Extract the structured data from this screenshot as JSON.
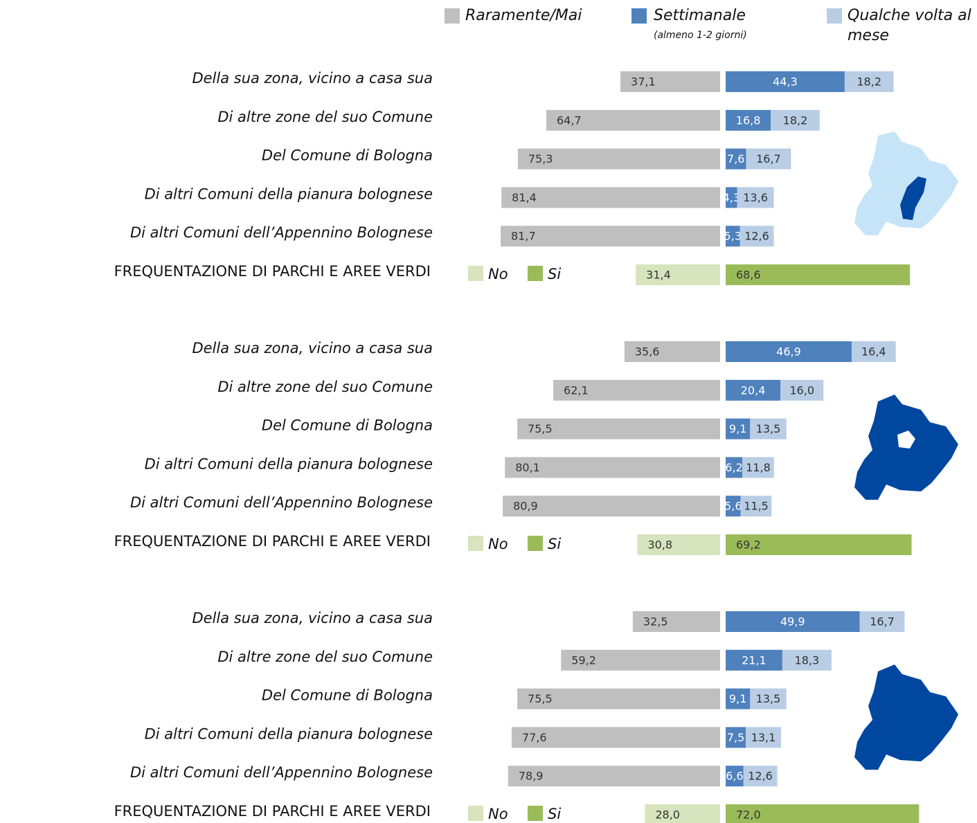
{
  "chart_data": [
    {
      "type": "bar",
      "orientation": "horizontal",
      "stacked": true,
      "categories": [
        "Della sua zona, vicino a casa sua",
        "Di altre zone del suo Comune",
        "Del Comune di Bologna",
        "Di altri Comuni della pianura bolognese",
        "Di altri Comuni dell’Appennino Bolognese"
      ],
      "series": [
        {
          "name": "Raramente/Mai",
          "color": "#bfbfbf",
          "values": [
            37.1,
            64.7,
            75.3,
            81.4,
            81.7
          ],
          "value_labels": [
            "37,1",
            "64,7",
            "75,3",
            "81,4",
            "81,7"
          ]
        },
        {
          "name": "Settimanale",
          "subtitle": "(almeno 1-2 giorni)",
          "color": "#4f81bd",
          "values": [
            44.3,
            16.8,
            7.6,
            4.3,
            5.3
          ],
          "value_labels": [
            "44,3",
            "16,8",
            "7,6",
            "4,3",
            "5,3"
          ]
        },
        {
          "name": "Qualche volta al mese",
          "color": "#b9cde5",
          "values": [
            18.2,
            18.2,
            16.7,
            13.6,
            12.6
          ],
          "value_labels": [
            "18,2",
            "18,2",
            "16,7",
            "13,6",
            "12,6"
          ]
        }
      ],
      "summary": {
        "label": "FREQUENTAZIONE DI PARCHI E AREE VERDI",
        "series": [
          {
            "name": "No",
            "color": "#d7e4bd",
            "value": 31.4,
            "value_label": "31,4"
          },
          {
            "name": "Si",
            "color": "#9bbb59",
            "value": 68.6,
            "value_label": "68,6"
          }
        ]
      }
    },
    {
      "type": "bar",
      "orientation": "horizontal",
      "stacked": true,
      "categories": [
        "Della sua zona, vicino a casa sua",
        "Di altre zone del suo Comune",
        "Del Comune di Bologna",
        "Di altri Comuni della pianura bolognese",
        "Di altri Comuni dell’Appennino Bolognese"
      ],
      "series": [
        {
          "name": "Raramente/Mai",
          "color": "#bfbfbf",
          "values": [
            35.6,
            62.1,
            75.5,
            80.1,
            80.9
          ],
          "value_labels": [
            "35,6",
            "62,1",
            "75,5",
            "80,1",
            "80,9"
          ]
        },
        {
          "name": "Settimanale",
          "subtitle": "(almeno 1-2 giorni)",
          "color": "#4f81bd",
          "values": [
            46.9,
            20.4,
            9.1,
            6.2,
            5.6
          ],
          "value_labels": [
            "46,9",
            "20,4",
            "9,1",
            "6,2",
            "5,6"
          ]
        },
        {
          "name": "Qualche volta al mese",
          "color": "#b9cde5",
          "values": [
            16.4,
            16.0,
            13.5,
            11.8,
            11.5
          ],
          "value_labels": [
            "16,4",
            "16,0",
            "13,5",
            "11,8",
            "11,5"
          ]
        }
      ],
      "summary": {
        "label": "FREQUENTAZIONE DI PARCHI E AREE VERDI",
        "series": [
          {
            "name": "No",
            "color": "#d7e4bd",
            "value": 30.8,
            "value_label": "30,8"
          },
          {
            "name": "Si",
            "color": "#9bbb59",
            "value": 69.2,
            "value_label": "69,2"
          }
        ]
      }
    },
    {
      "type": "bar",
      "orientation": "horizontal",
      "stacked": true,
      "categories": [
        "Della sua zona, vicino a casa sua",
        "Di altre zone del suo Comune",
        "Del Comune di Bologna",
        "Di altri Comuni della pianura bolognese",
        "Di altri Comuni dell’Appennino Bolognese"
      ],
      "series": [
        {
          "name": "Raramente/Mai",
          "color": "#bfbfbf",
          "values": [
            32.5,
            59.2,
            75.5,
            77.6,
            78.9
          ],
          "value_labels": [
            "32,5",
            "59,2",
            "75,5",
            "77,6",
            "78,9"
          ]
        },
        {
          "name": "Settimanale",
          "subtitle": "(almeno 1-2 giorni)",
          "color": "#4f81bd",
          "values": [
            49.9,
            21.1,
            9.1,
            7.5,
            6.6
          ],
          "value_labels": [
            "49,9",
            "21,1",
            "9,1",
            "7,5",
            "6,6"
          ]
        },
        {
          "name": "Qualche volta al mese",
          "color": "#b9cde5",
          "values": [
            16.7,
            18.3,
            13.5,
            13.1,
            12.6
          ],
          "value_labels": [
            "16,7",
            "18,3",
            "13,5",
            "13,1",
            "12,6"
          ]
        }
      ],
      "summary": {
        "label": "FREQUENTAZIONE DI PARCHI E AREE VERDI",
        "series": [
          {
            "name": "No",
            "color": "#d7e4bd",
            "value": 28.0,
            "value_label": "28,0"
          },
          {
            "name": "Si",
            "color": "#9bbb59",
            "value": 72.0,
            "value_label": "72,0"
          }
        ]
      }
    }
  ]
}
